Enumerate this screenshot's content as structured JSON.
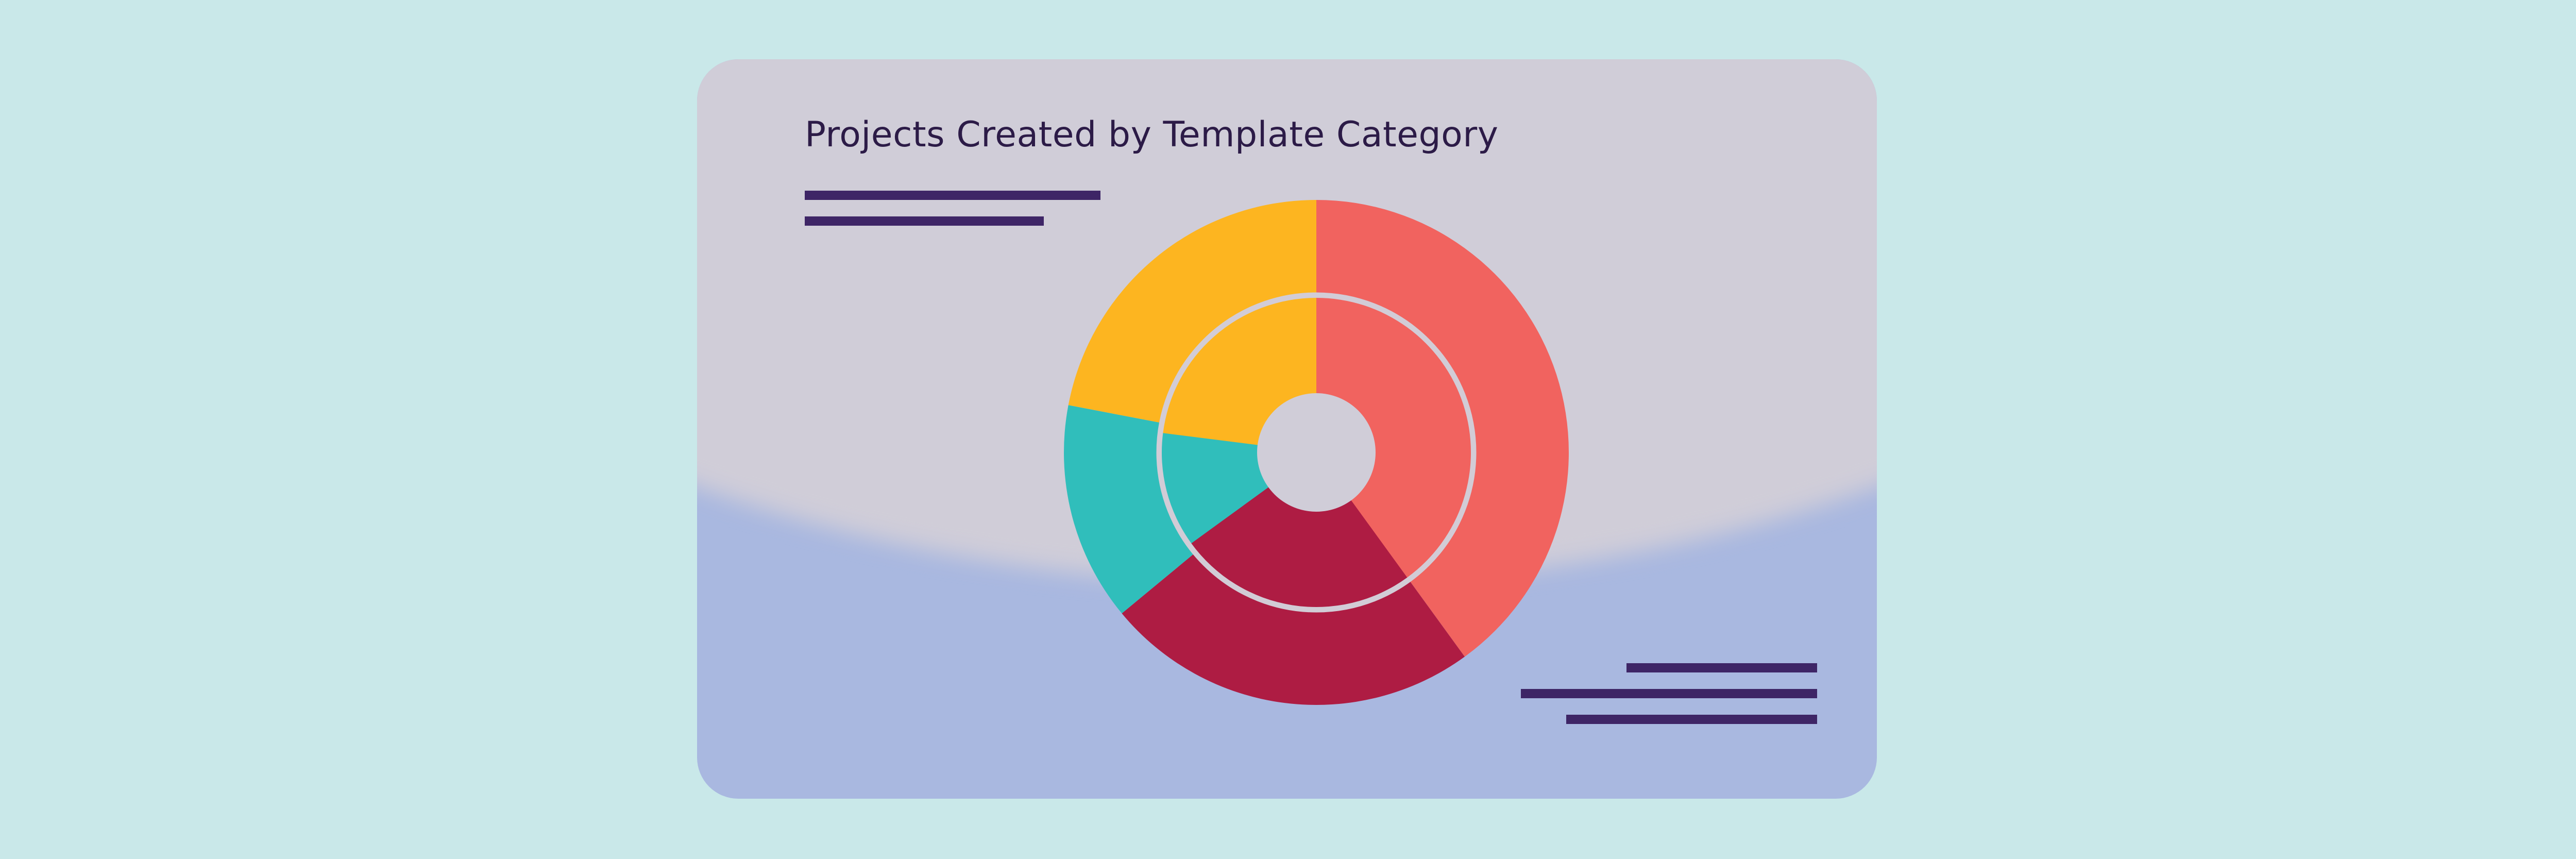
{
  "colors": {
    "page_background": "#c9e8e9",
    "card_top": "#d0cdd8",
    "card_bottom": "#a9b8e0",
    "title_text": "#2c1b47",
    "decoration_lines": "#3e2566",
    "ring_outline": "#d2ccd6",
    "center_hole": "#d0cdd8"
  },
  "chart_data": {
    "type": "pie",
    "subtype": "nested-donut",
    "title": "Projects Created by Template Category",
    "legend": "none",
    "start_angle_deg": 0,
    "direction": "clockwise",
    "series": [
      {
        "ring": "outer",
        "values": [
          40,
          24,
          14,
          22
        ],
        "colors": [
          "#f1635f",
          "#ae1c43",
          "#30bebb",
          "#fdb520"
        ]
      },
      {
        "ring": "inner",
        "values": [
          40,
          25,
          12,
          23
        ],
        "colors": [
          "#f1635f",
          "#ae1c43",
          "#30bebb",
          "#fdb520"
        ]
      }
    ]
  }
}
